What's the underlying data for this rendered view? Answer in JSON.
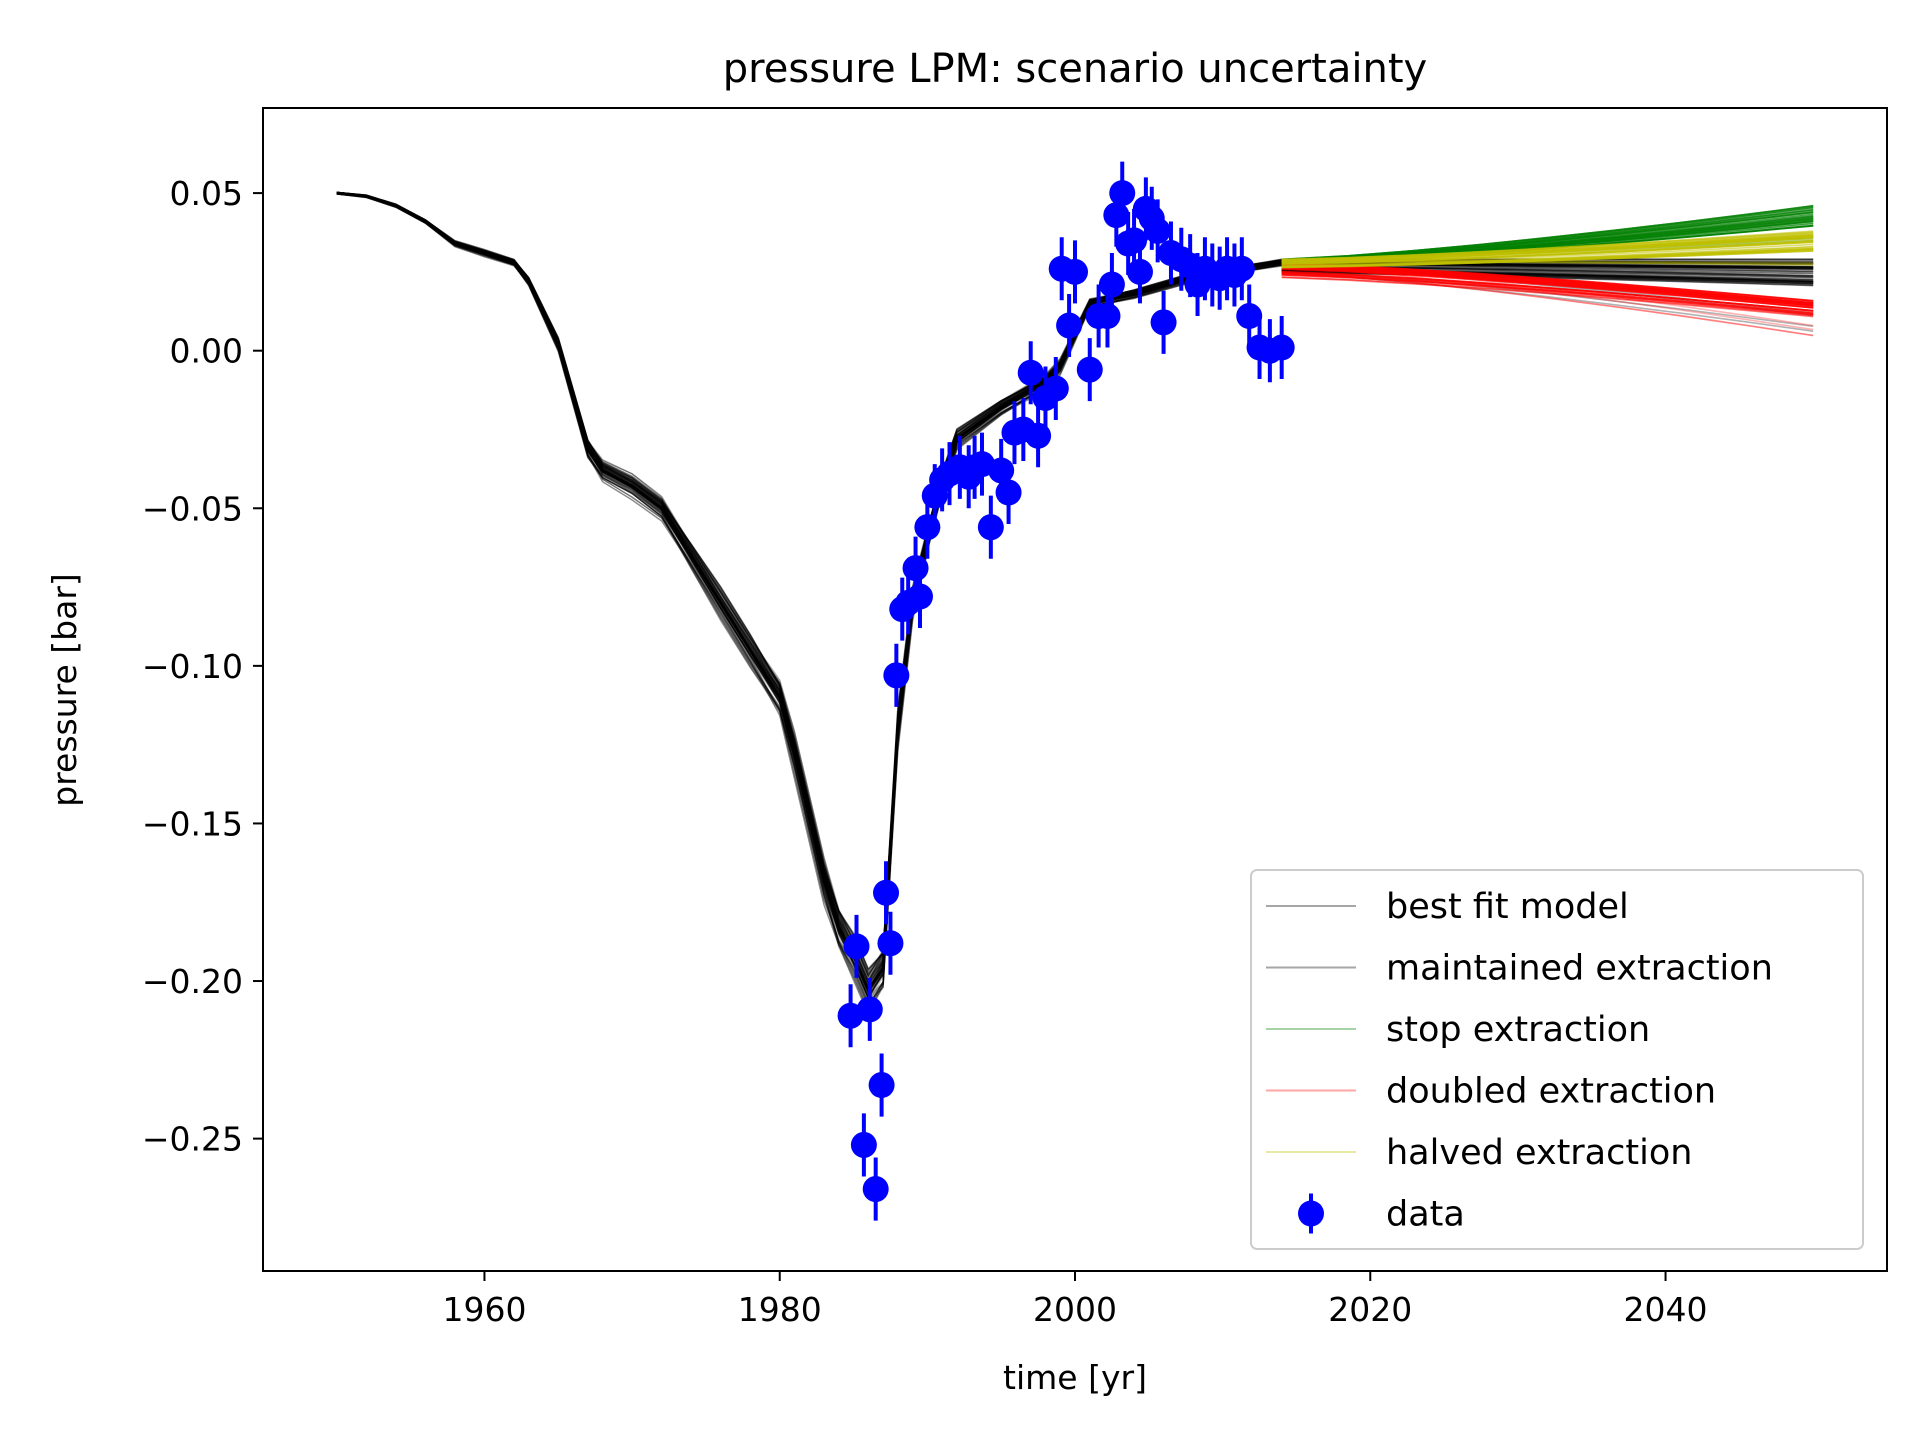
{
  "chart_data": {
    "type": "line",
    "title": "pressure LPM: scenario uncertainty",
    "xlabel": "time [yr]",
    "ylabel": "pressure [bar]",
    "xlim": [
      1945,
      2055
    ],
    "ylim": [
      -0.292,
      0.077
    ],
    "xticks": [
      1960,
      1980,
      2000,
      2020,
      2040
    ],
    "xtick_labels": [
      "1960",
      "1980",
      "2000",
      "2020",
      "2040"
    ],
    "yticks": [
      0.05,
      0.0,
      -0.05,
      -0.1,
      -0.15,
      -0.2,
      -0.25
    ],
    "ytick_labels": [
      "0.05",
      "0.00",
      "−0.05",
      "−0.10",
      "−0.15",
      "−0.20",
      "−0.25"
    ],
    "grid": false,
    "legend_position": "lower-right",
    "legend": [
      {
        "label": "best fit model",
        "color": "#000000",
        "style": "line"
      },
      {
        "label": "maintained extraction",
        "color": "#000000",
        "style": "line"
      },
      {
        "label": "stop extraction",
        "color": "#008000",
        "style": "line"
      },
      {
        "label": "doubled extraction",
        "color": "#ff0000",
        "style": "line"
      },
      {
        "label": "halved extraction",
        "color": "#bfbf00",
        "style": "line"
      },
      {
        "label": "data",
        "color": "#0000ff",
        "style": "errorbar-marker"
      }
    ],
    "best_fit_model": {
      "x": [
        1950,
        1952,
        1954,
        1956,
        1958,
        1960,
        1962,
        1963,
        1965,
        1967,
        1968,
        1970,
        1972,
        1974,
        1976,
        1978,
        1980,
        1981,
        1983,
        1984,
        1985,
        1986,
        1987,
        1988,
        1989,
        1990,
        1991,
        1992,
        1995,
        1998,
        1999,
        2001,
        2004,
        2007,
        2010,
        2014
      ],
      "y": [
        0.05,
        0.049,
        0.046,
        0.041,
        0.034,
        0.031,
        0.028,
        0.022,
        0.002,
        -0.031,
        -0.038,
        -0.043,
        -0.05,
        -0.065,
        -0.08,
        -0.095,
        -0.11,
        -0.128,
        -0.168,
        -0.183,
        -0.192,
        -0.203,
        -0.196,
        -0.12,
        -0.08,
        -0.06,
        -0.042,
        -0.028,
        -0.018,
        -0.01,
        -0.005,
        0.015,
        0.018,
        0.022,
        0.025,
        0.028
      ]
    },
    "scenarios": [
      {
        "name": "maintained extraction",
        "color": "#000000",
        "x": [
          2014,
          2050
        ],
        "y_start": [
          0.014,
          0.029
        ],
        "y_end": [
          0.006,
          0.029
        ]
      },
      {
        "name": "stop extraction",
        "color": "#008000",
        "x": [
          2014,
          2050
        ],
        "y_start": [
          0.024,
          0.029
        ],
        "y_end": [
          0.03,
          0.046
        ]
      },
      {
        "name": "doubled extraction",
        "color": "#ff0000",
        "x": [
          2014,
          2050
        ],
        "y_start": [
          0.012,
          0.028
        ],
        "y_end": [
          0.003,
          0.016
        ]
      },
      {
        "name": "halved extraction",
        "color": "#bfbf00",
        "x": [
          2014,
          2050
        ],
        "y_start": [
          0.02,
          0.029
        ],
        "y_end": [
          0.022,
          0.038
        ]
      }
    ],
    "data": {
      "x": [
        1984.8,
        1985.2,
        1985.7,
        1986.1,
        1986.5,
        1986.9,
        1987.2,
        1987.5,
        1987.9,
        1988.3,
        1988.7,
        1989.2,
        1989.5,
        1990.0,
        1990.5,
        1991.0,
        1991.5,
        1992.2,
        1992.8,
        1993.2,
        1993.7,
        1994.3,
        1995.0,
        1995.5,
        1995.9,
        1996.5,
        1997.0,
        1997.5,
        1998.0,
        1998.7,
        1999.1,
        1999.6,
        2000.0,
        2001.0,
        2001.6,
        2002.2,
        2002.5,
        2002.8,
        2003.2,
        2003.6,
        2004.0,
        2004.4,
        2004.8,
        2005.2,
        2005.6,
        2006.0,
        2006.5,
        2007.2,
        2007.8,
        2008.3,
        2008.8,
        2009.3,
        2009.8,
        2010.3,
        2010.8,
        2011.3,
        2011.8,
        2012.5,
        2013.2,
        2014.0
      ],
      "y": [
        -0.211,
        -0.189,
        -0.252,
        -0.209,
        -0.266,
        -0.233,
        -0.172,
        -0.188,
        -0.103,
        -0.082,
        -0.08,
        -0.069,
        -0.078,
        -0.056,
        -0.046,
        -0.041,
        -0.039,
        -0.037,
        -0.04,
        -0.037,
        -0.036,
        -0.056,
        -0.038,
        -0.045,
        -0.026,
        -0.025,
        -0.007,
        -0.027,
        -0.015,
        -0.012,
        0.026,
        0.008,
        0.025,
        -0.006,
        0.011,
        0.011,
        0.021,
        0.043,
        0.05,
        0.034,
        0.035,
        0.025,
        0.045,
        0.042,
        0.038,
        0.009,
        0.031,
        0.029,
        0.027,
        0.021,
        0.026,
        0.024,
        0.023,
        0.026,
        0.024,
        0.026,
        0.011,
        0.001,
        0.0,
        0.001
      ],
      "yerr": 0.01
    }
  }
}
